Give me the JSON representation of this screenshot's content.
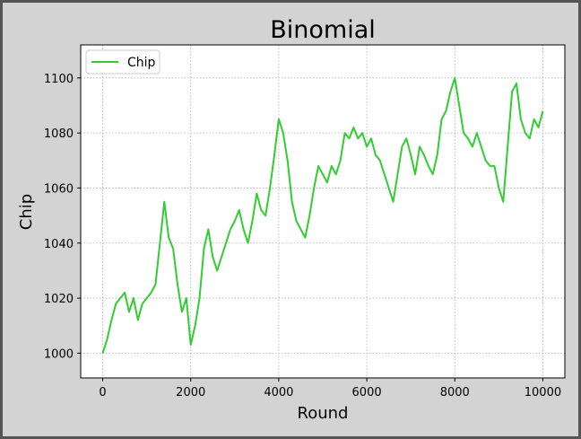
{
  "chart_data": {
    "type": "line",
    "title": "Binomial",
    "x_label": "Round",
    "y_label": "Chip",
    "x": [
      0,
      100,
      200,
      300,
      400,
      500,
      600,
      700,
      800,
      900,
      1000,
      1100,
      1200,
      1300,
      1400,
      1500,
      1600,
      1700,
      1800,
      1900,
      2000,
      2100,
      2200,
      2300,
      2400,
      2500,
      2600,
      2700,
      2800,
      2900,
      3000,
      3100,
      3200,
      3300,
      3400,
      3500,
      3600,
      3700,
      3800,
      3900,
      4000,
      4100,
      4200,
      4300,
      4400,
      4500,
      4600,
      4700,
      4800,
      4900,
      5000,
      5100,
      5200,
      5300,
      5400,
      5500,
      5600,
      5700,
      5800,
      5900,
      6000,
      6100,
      6200,
      6300,
      6400,
      6500,
      6600,
      6700,
      6800,
      6900,
      7000,
      7100,
      7200,
      7300,
      7400,
      7500,
      7600,
      7700,
      7800,
      7900,
      8000,
      8100,
      8200,
      8300,
      8400,
      8500,
      8600,
      8700,
      8800,
      8900,
      9000,
      9100,
      9200,
      9300,
      9400,
      9500,
      9600,
      9700,
      9800,
      9900,
      10000
    ],
    "series": [
      {
        "name": "Chip",
        "color": "#32cd32",
        "values": [
          1000,
          1005,
          1012,
          1018,
          1020,
          1022,
          1015,
          1020,
          1012,
          1018,
          1020,
          1022,
          1025,
          1040,
          1055,
          1042,
          1038,
          1025,
          1015,
          1020,
          1003,
          1010,
          1020,
          1038,
          1045,
          1035,
          1030,
          1035,
          1040,
          1045,
          1048,
          1052,
          1045,
          1040,
          1048,
          1058,
          1052,
          1050,
          1060,
          1072,
          1085,
          1080,
          1070,
          1055,
          1048,
          1045,
          1042,
          1050,
          1060,
          1068,
          1065,
          1062,
          1068,
          1065,
          1070,
          1080,
          1078,
          1082,
          1078,
          1080,
          1075,
          1078,
          1072,
          1070,
          1065,
          1060,
          1055,
          1065,
          1075,
          1078,
          1072,
          1065,
          1075,
          1072,
          1068,
          1065,
          1072,
          1085,
          1088,
          1095,
          1100,
          1090,
          1080,
          1078,
          1075,
          1080,
          1075,
          1070,
          1068,
          1068,
          1060,
          1055,
          1075,
          1095,
          1098,
          1085,
          1080,
          1078,
          1085,
          1082,
          1088
        ]
      }
    ],
    "xlim": [
      -500,
      10500
    ],
    "ylim": [
      991,
      1112
    ],
    "xticks": [
      0,
      2000,
      4000,
      6000,
      8000,
      10000
    ],
    "yticks": [
      1000,
      1020,
      1040,
      1060,
      1080,
      1100
    ],
    "grid": true,
    "legend": "upper left"
  }
}
